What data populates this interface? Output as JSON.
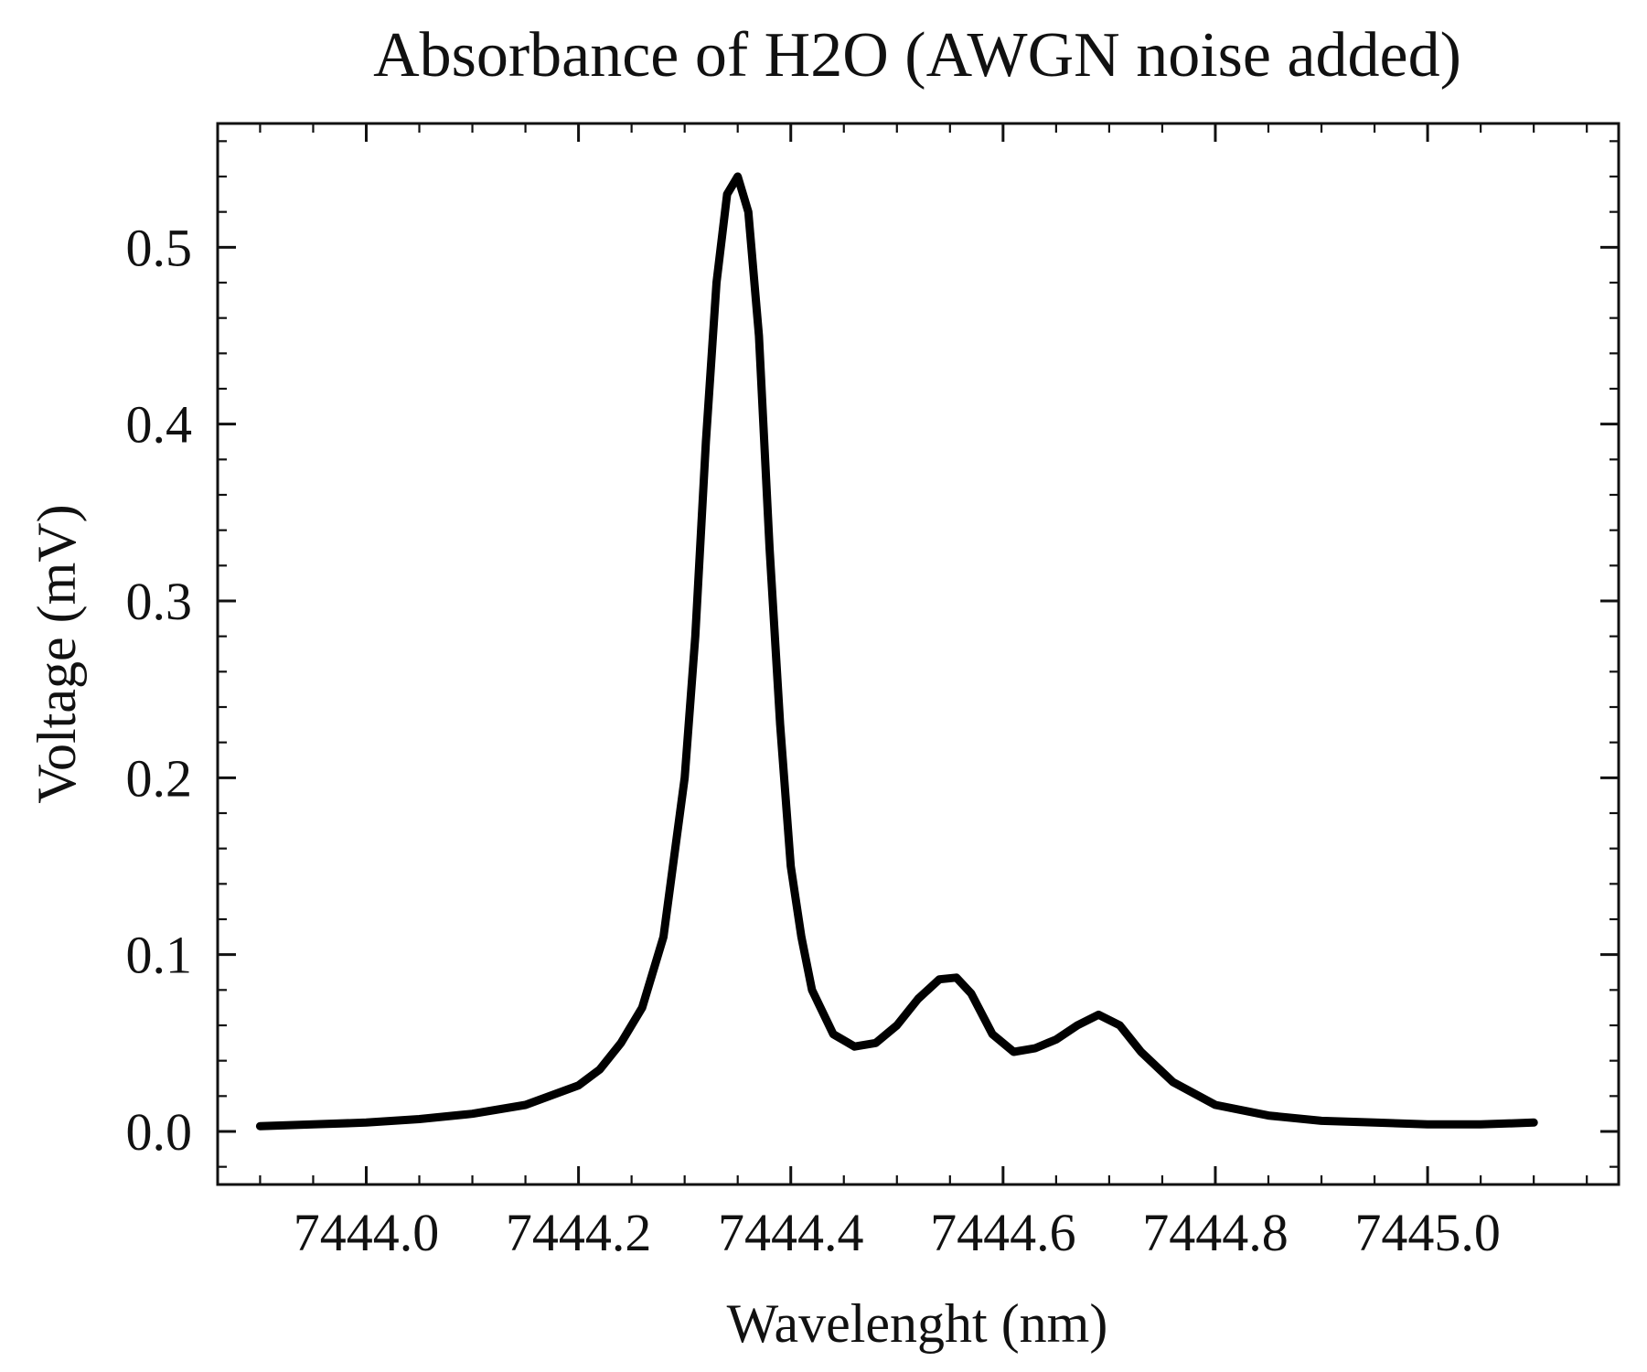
{
  "chart_data": {
    "type": "line",
    "title": "Absorbance of H2O (AWGN noise added)",
    "xlabel": "Wavelenght (nm)",
    "ylabel": "Voltage (mV)",
    "xlim": [
      7443.86,
      7445.18
    ],
    "ylim": [
      -0.03,
      0.57
    ],
    "xticks": [
      7444.0,
      7444.2,
      7444.4,
      7444.6,
      7444.8,
      7445.0
    ],
    "xtick_labels": [
      "7444.0",
      "7444.2",
      "7444.4",
      "7444.6",
      "7444.8",
      "7445.0"
    ],
    "yticks": [
      0.0,
      0.1,
      0.2,
      0.3,
      0.4,
      0.5
    ],
    "ytick_labels": [
      "0.0",
      "0.1",
      "0.2",
      "0.3",
      "0.4",
      "0.5"
    ],
    "grid": false,
    "colors": {
      "line": "#000000",
      "axes": "#111111"
    },
    "series": [
      {
        "x": [
          7443.9,
          7443.95,
          7444.0,
          7444.05,
          7444.1,
          7444.15,
          7444.2,
          7444.22,
          7444.24,
          7444.26,
          7444.28,
          7444.3,
          7444.31,
          7444.32,
          7444.33,
          7444.34,
          7444.35,
          7444.36,
          7444.37,
          7444.38,
          7444.39,
          7444.4,
          7444.41,
          7444.42,
          7444.44,
          7444.46,
          7444.48,
          7444.5,
          7444.52,
          7444.54,
          7444.556,
          7444.57,
          7444.59,
          7444.61,
          7444.63,
          7444.65,
          7444.67,
          7444.69,
          7444.71,
          7444.73,
          7444.76,
          7444.8,
          7444.85,
          7444.9,
          7444.95,
          7445.0,
          7445.05,
          7445.1
        ],
        "y": [
          0.003,
          0.004,
          0.005,
          0.007,
          0.01,
          0.015,
          0.026,
          0.035,
          0.05,
          0.07,
          0.11,
          0.2,
          0.28,
          0.39,
          0.48,
          0.53,
          0.54,
          0.52,
          0.45,
          0.33,
          0.23,
          0.15,
          0.11,
          0.08,
          0.055,
          0.048,
          0.05,
          0.06,
          0.075,
          0.086,
          0.087,
          0.078,
          0.055,
          0.045,
          0.047,
          0.052,
          0.06,
          0.066,
          0.06,
          0.045,
          0.028,
          0.015,
          0.009,
          0.006,
          0.005,
          0.004,
          0.004,
          0.005
        ]
      }
    ]
  }
}
